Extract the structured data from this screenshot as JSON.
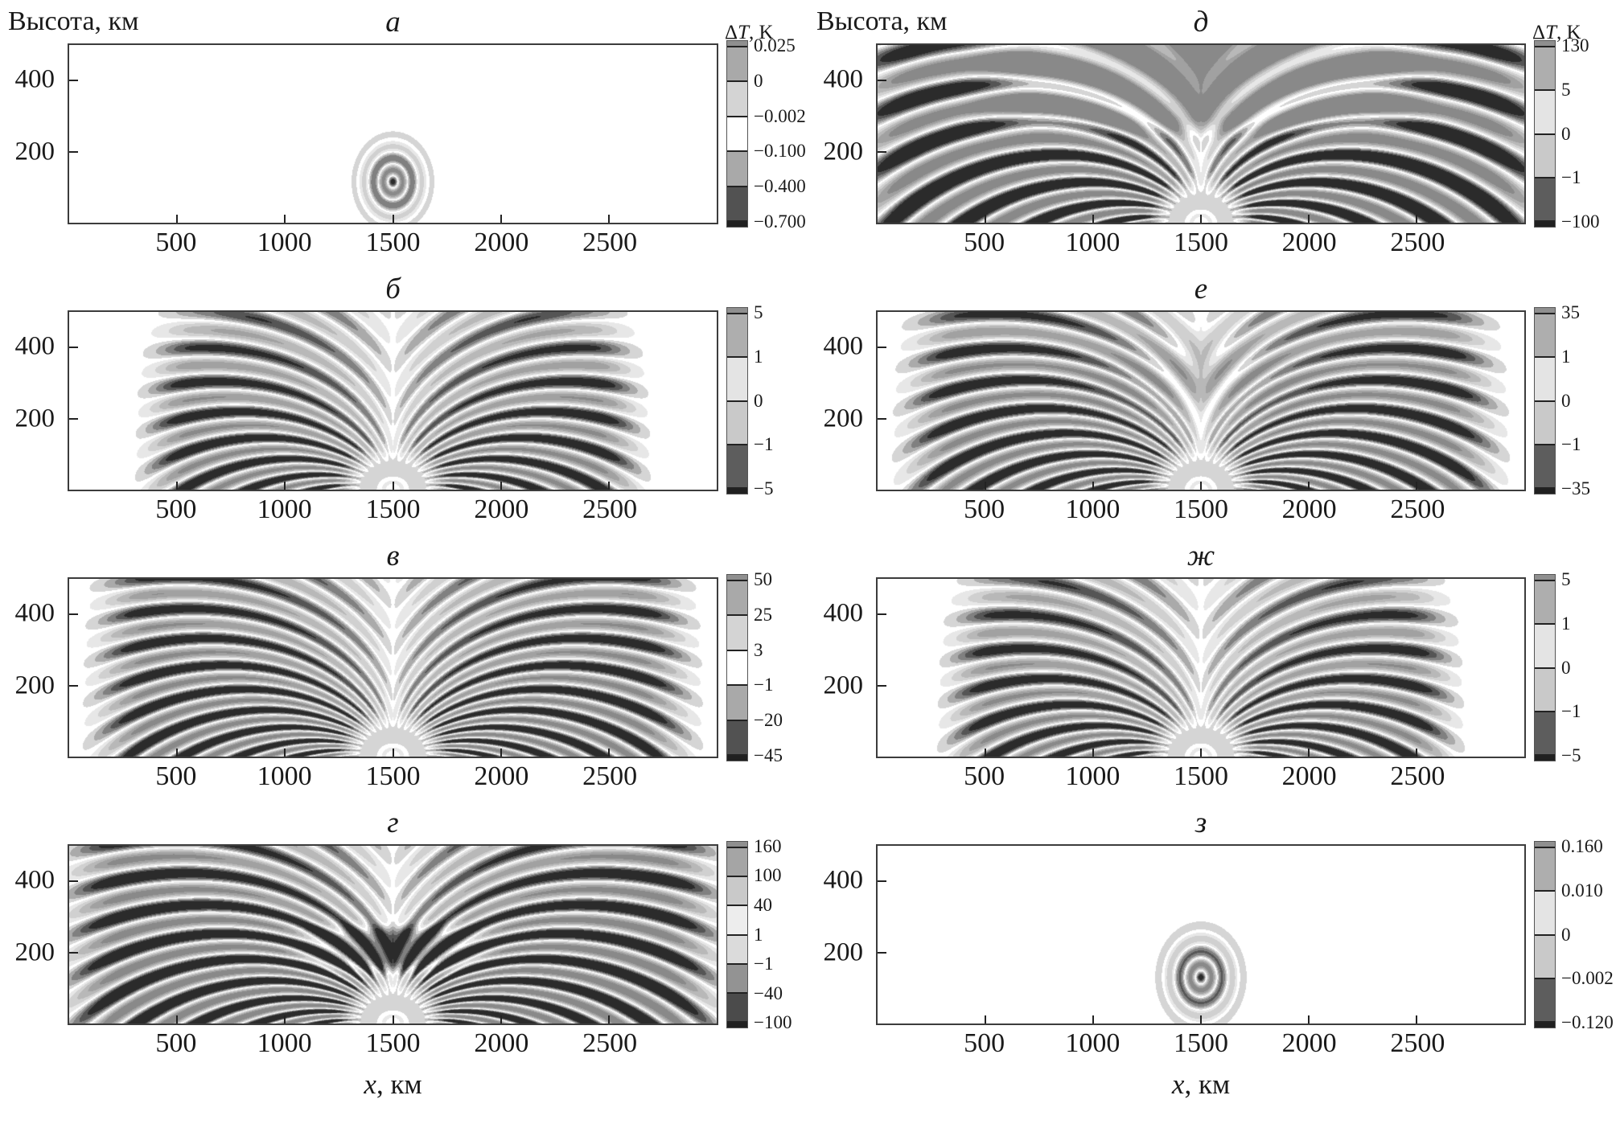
{
  "figure": {
    "y_axis_title": "Высота, км",
    "x_axis_title_parts": [
      "x",
      ", км"
    ],
    "colorbar_title_parts": [
      "Δ",
      "T",
      ", K"
    ],
    "x_ticks": [
      {
        "label": "500",
        "value": 500
      },
      {
        "label": "1000",
        "value": 1000
      },
      {
        "label": "1500",
        "value": 1500
      },
      {
        "label": "2000",
        "value": 2000
      },
      {
        "label": "2500",
        "value": 2500
      }
    ],
    "y_ticks": [
      {
        "label": "400",
        "value": 400
      },
      {
        "label": "200",
        "value": 200
      }
    ],
    "x_range": [
      0,
      3000
    ],
    "y_range": [
      0,
      500
    ],
    "colors": {
      "background": "#ffffff",
      "ink": "#1a1a1a",
      "plot_border": "#3c3c3c",
      "contour_dark": "#2b2b2b",
      "contour_light": "#8a8a8a"
    }
  },
  "chart_data": {
    "type": "heatmap",
    "title": "",
    "description": "Eight grayscale contour panels (а–з) of temperature perturbation ΔT(x, height) in K from a localized source at x = 1500 km; height axis 0–500 km, horizontal axis 0–3000 km",
    "panels": [
      {
        "id": "a",
        "label": "а",
        "row": 0,
        "col": 0,
        "show_height_label": true,
        "show_colorbar_title": true,
        "show_x_title": false,
        "colorbar_ticks": [
          "0.025",
          "0",
          "−0.002",
          "−0.100",
          "−0.400",
          "−0.700"
        ],
        "pattern": "rings",
        "params": {
          "cx": 1500,
          "cz": 115,
          "period": 92,
          "rmax": 165,
          "zs": 1.35
        }
      },
      {
        "id": "b",
        "label": "б",
        "row": 1,
        "col": 0,
        "show_height_label": false,
        "show_colorbar_title": false,
        "show_x_title": false,
        "colorbar_ticks": [
          "5",
          "1",
          "0",
          "−1",
          "−5"
        ],
        "pattern": "fan",
        "params": {
          "n": 28,
          "wl": 300,
          "xmax": 1250,
          "rmax": 1600,
          "gain": 1.0,
          "zs": 2.0
        }
      },
      {
        "id": "v",
        "label": "в",
        "row": 2,
        "col": 0,
        "show_height_label": false,
        "show_colorbar_title": false,
        "show_x_title": false,
        "colorbar_ticks": [
          "50",
          "25",
          "3",
          "−1",
          "−20",
          "−45"
        ],
        "pattern": "fan",
        "params": {
          "n": 34,
          "wl": 260,
          "xmax": 1500,
          "rmax": 2000,
          "gain": 1.05,
          "zs": 2.0
        }
      },
      {
        "id": "g",
        "label": "г",
        "row": 3,
        "col": 0,
        "show_height_label": false,
        "show_colorbar_title": false,
        "show_x_title": true,
        "colorbar_ticks": [
          "160",
          "100",
          "40",
          "1",
          "−1",
          "−40",
          "−100"
        ],
        "pattern": "fan",
        "params": {
          "n": 32,
          "wl": 280,
          "xmax": 1650,
          "rmax": 2200,
          "gain": 1.15,
          "zs": 2.0,
          "midBand": true
        }
      },
      {
        "id": "d",
        "label": "д",
        "row": 0,
        "col": 1,
        "show_height_label": true,
        "show_colorbar_title": true,
        "show_x_title": false,
        "colorbar_ticks": [
          "130",
          "5",
          "0",
          "−1",
          "−100"
        ],
        "pattern": "fan",
        "params": {
          "n": 24,
          "wl": 340,
          "xmax": 1750,
          "rmax": 2400,
          "gain": 1.2,
          "zs": 2.0,
          "topPlateau": true
        }
      },
      {
        "id": "e",
        "label": "е",
        "row": 1,
        "col": 1,
        "show_height_label": false,
        "show_colorbar_title": false,
        "show_x_title": false,
        "colorbar_ticks": [
          "35",
          "1",
          "0",
          "−1",
          "−35"
        ],
        "pattern": "fan",
        "params": {
          "n": 30,
          "wl": 280,
          "xmax": 1500,
          "rmax": 1900,
          "gain": 1.05,
          "zs": 2.0,
          "topBlob": true
        }
      },
      {
        "id": "zh",
        "label": "ж",
        "row": 2,
        "col": 1,
        "show_height_label": false,
        "show_colorbar_title": false,
        "show_x_title": false,
        "colorbar_ticks": [
          "5",
          "1",
          "0",
          "−1",
          "−5"
        ],
        "pattern": "fan",
        "params": {
          "n": 28,
          "wl": 300,
          "xmax": 1280,
          "rmax": 1650,
          "gain": 1.0,
          "zs": 2.0
        }
      },
      {
        "id": "z",
        "label": "з",
        "row": 3,
        "col": 1,
        "show_height_label": false,
        "show_colorbar_title": false,
        "show_x_title": true,
        "colorbar_ticks": [
          "0.160",
          "0.010",
          "0",
          "−0.002",
          "−0.120"
        ],
        "pattern": "rings",
        "params": {
          "cx": 1500,
          "cz": 130,
          "period": 100,
          "rmax": 190,
          "zs": 1.35
        }
      }
    ]
  }
}
